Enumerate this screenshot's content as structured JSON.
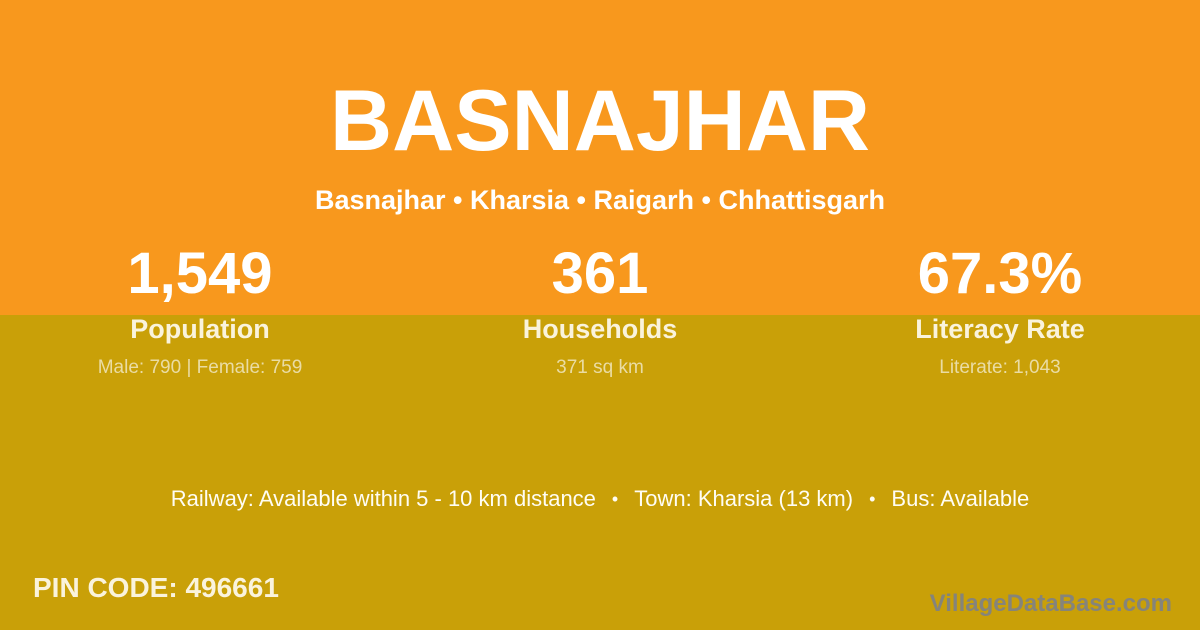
{
  "header": {
    "title": "BASNAJHAR",
    "breadcrumb": "Basnajhar • Kharsia • Raigarh • Chhattisgarh"
  },
  "stats": [
    {
      "value": "1,549",
      "label": "Population",
      "detail": "Male: 790 | Female: 759"
    },
    {
      "value": "361",
      "label": "Households",
      "detail": "371 sq km"
    },
    {
      "value": "67.3%",
      "label": "Literacy Rate",
      "detail": "Literate: 1,043"
    }
  ],
  "info": {
    "separator": "•",
    "segments": [
      "Railway: Available within 5 - 10 km distance",
      "Town: Kharsia (13 km)",
      "Bus: Available"
    ]
  },
  "footer": {
    "pin_code": "PIN CODE: 496661",
    "watermark": "VillageDataBase.com"
  },
  "colors": {
    "orange": "#F8981D",
    "gold": "#C9A008",
    "text_white": "#FFFFFF",
    "text_cream": "#FAF3DC",
    "text_muted": "#EADCA4",
    "watermark_gray": "#85847B"
  }
}
